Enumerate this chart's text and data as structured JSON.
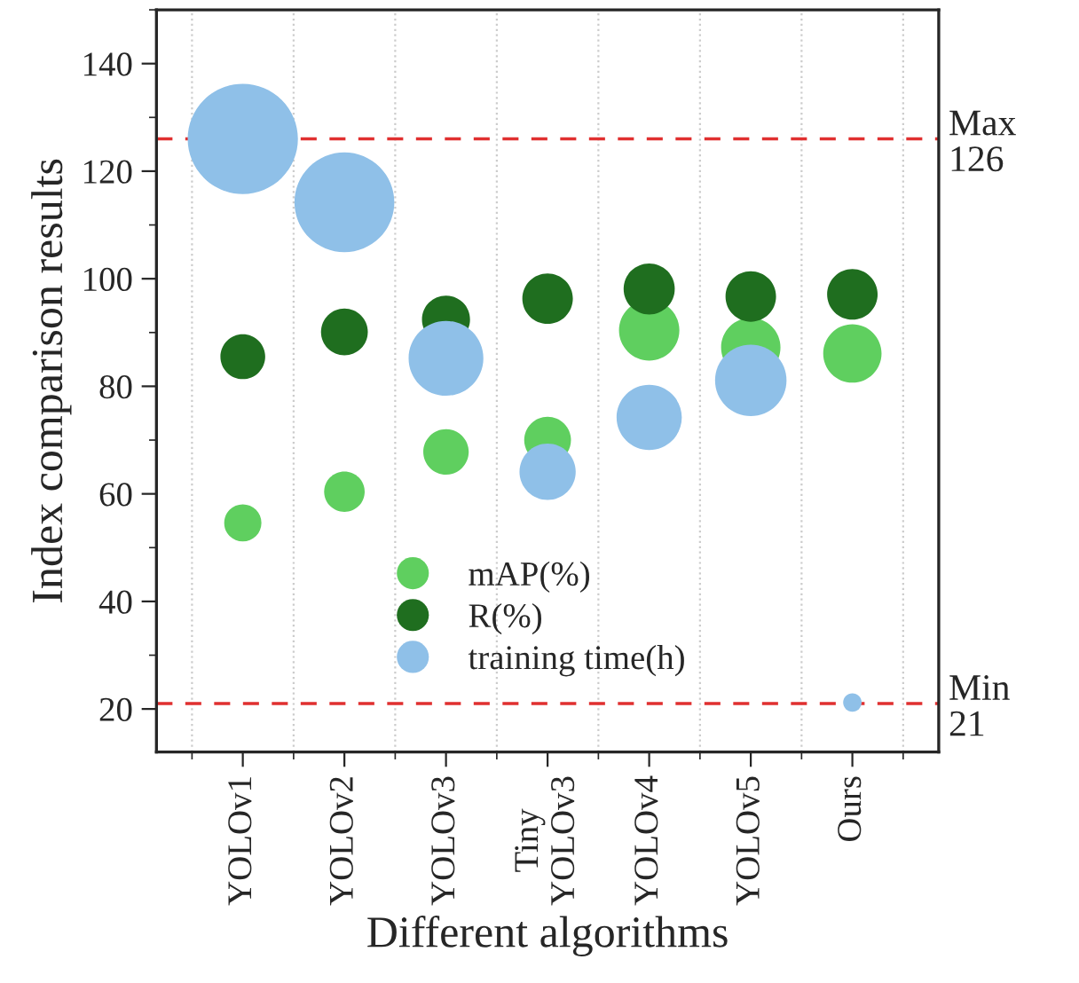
{
  "chart_data": {
    "type": "bubble",
    "xlabel": "Different algorithms",
    "ylabel": "Index comparison results",
    "categories": [
      "YOLOv1",
      "YOLOv2",
      "YOLOv3",
      "Tiny\nYOLOv3",
      "YOLOv4",
      "YOLOv5",
      "Ours"
    ],
    "series": [
      {
        "name": "mAP(%)",
        "color": "#5fcf5f",
        "values": [
          54.6,
          60.4,
          67.8,
          70,
          90.4,
          87.2,
          86.1
        ],
        "sizes": [
          0.114,
          0.135,
          0.17,
          0.18,
          0.3,
          0.29,
          0.28
        ]
      },
      {
        "name": "R(%)",
        "color": "#1f6e1f",
        "values": [
          85.5,
          90.1,
          92.4,
          96.3,
          98.1,
          96.7,
          97.1
        ],
        "sizes": [
          0.165,
          0.18,
          0.19,
          0.21,
          0.215,
          0.21,
          0.21
        ]
      },
      {
        "name": "training time(h)",
        "color": "#8fc0e8",
        "values": [
          126,
          114.2,
          85.2,
          64.1,
          74.2,
          81.1,
          21.2
        ],
        "sizes": [
          1,
          0.82,
          0.46,
          0.26,
          0.35,
          0.42,
          0.028
        ]
      }
    ],
    "ylim": [
      12,
      150
    ],
    "yticks": [
      20,
      40,
      60,
      80,
      100,
      120,
      140
    ],
    "ref_lines": [
      {
        "axis": "y",
        "value": 126,
        "label": "Max\n126",
        "color": "#e03030",
        "line_style": "dashed"
      },
      {
        "axis": "y",
        "value": 21,
        "label": "Min\n21",
        "color": "#e03030",
        "line_style": "dashed"
      }
    ],
    "grid": "x",
    "legend": "bottom",
    "marker": "circle"
  }
}
